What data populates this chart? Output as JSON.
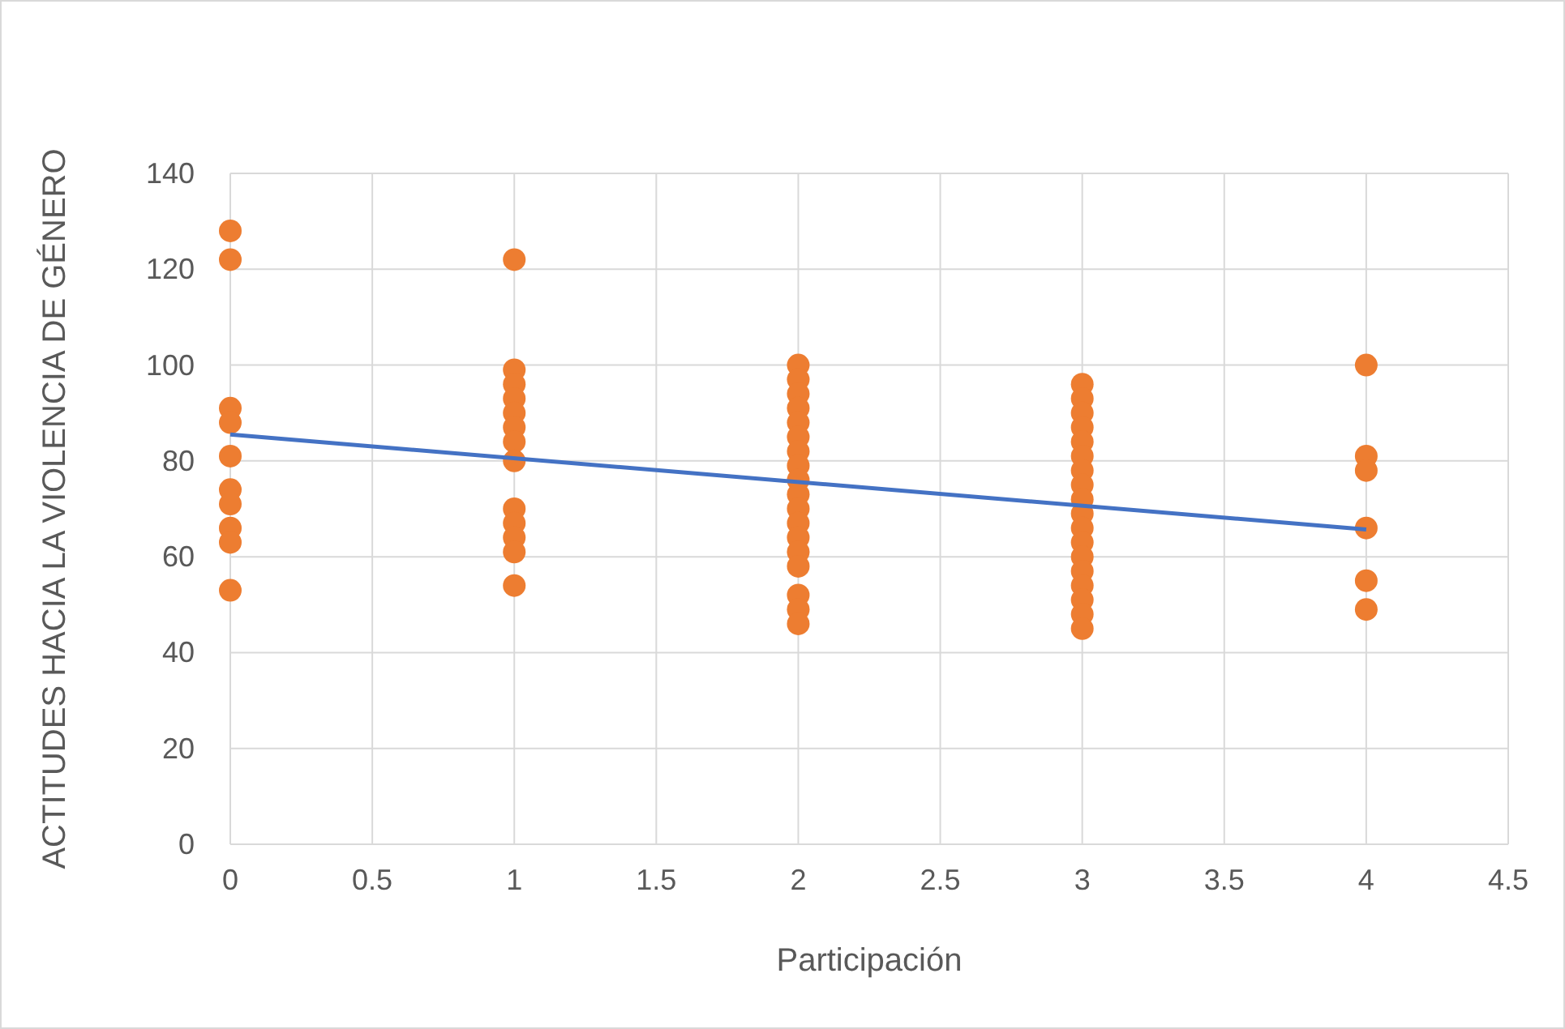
{
  "chart_data": {
    "type": "scatter",
    "xlabel": "Participación",
    "ylabel": "ACTITUDES HACIA LA VIOLENCIA DE GÉNERO",
    "xlim": [
      0,
      4.5
    ],
    "xticks": [
      0,
      0.5,
      1,
      1.5,
      2,
      2.5,
      3,
      3.5,
      4,
      4.5
    ],
    "ylim": [
      0,
      140
    ],
    "yticks": [
      0,
      20,
      40,
      60,
      80,
      100,
      120,
      140
    ],
    "grid": true,
    "marker": "circle",
    "series": [
      {
        "color": "#ed7d31",
        "x": [
          0,
          0,
          0,
          0,
          0,
          0,
          0,
          0,
          0,
          0,
          1,
          1,
          1,
          1,
          1,
          1,
          1,
          1,
          1,
          1,
          1,
          1,
          1,
          2,
          2,
          2,
          2,
          2,
          2,
          2,
          2,
          2,
          2,
          2,
          2,
          2,
          2,
          2,
          2,
          2,
          2,
          3,
          3,
          3,
          3,
          3,
          3,
          3,
          3,
          3,
          3,
          3,
          3,
          3,
          3,
          3,
          3,
          3,
          3,
          4,
          4,
          4,
          4,
          4,
          4
        ],
        "values": [
          128,
          122,
          91,
          88,
          81,
          74,
          71,
          66,
          63,
          53,
          122,
          99,
          96,
          93,
          90,
          87,
          84,
          80,
          70,
          67,
          64,
          61,
          54,
          100,
          97,
          94,
          91,
          88,
          85,
          82,
          79,
          76,
          73,
          70,
          67,
          64,
          61,
          58,
          52,
          49,
          46,
          96,
          93,
          90,
          87,
          84,
          81,
          78,
          75,
          72,
          69,
          66,
          63,
          60,
          57,
          54,
          51,
          48,
          45,
          100,
          81,
          78,
          66,
          55,
          49
        ]
      },
      {
        "type": "line",
        "marker": "none",
        "color": "#4472c4",
        "x": [
          0,
          4
        ],
        "values": [
          85.5,
          65.7
        ]
      }
    ]
  }
}
